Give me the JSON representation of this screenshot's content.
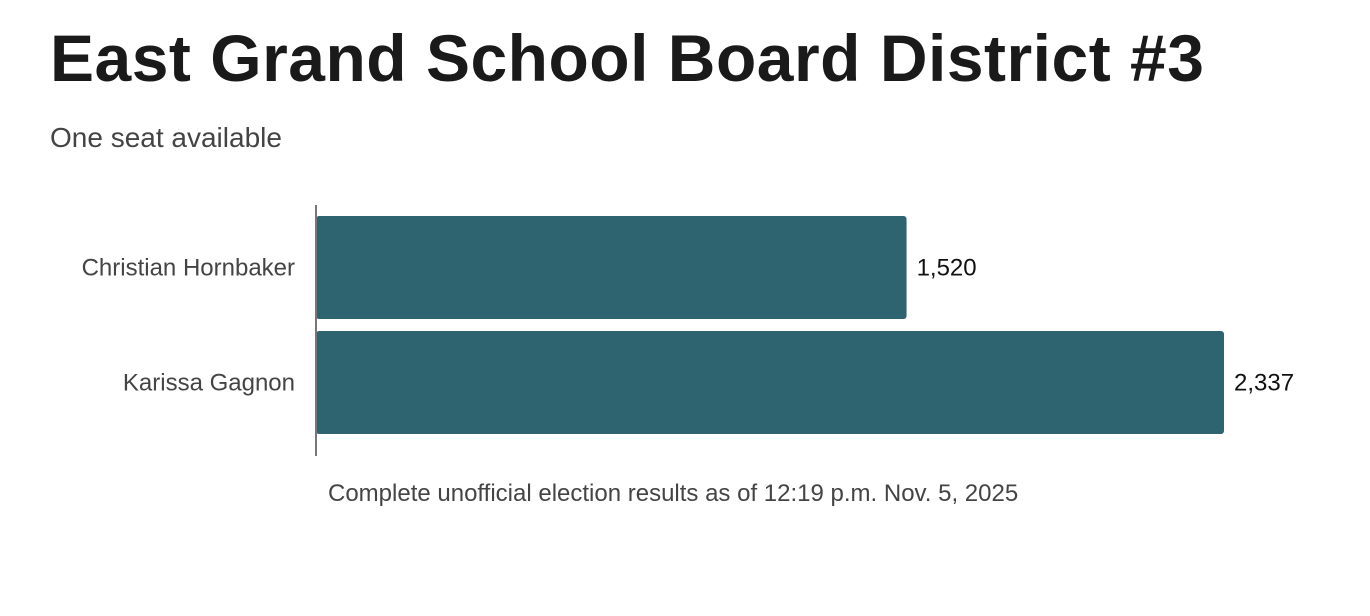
{
  "title": "East Grand School Board District #3",
  "subtitle": "One seat available",
  "note": "Complete unofficial election results as of 12:19 p.m. Nov. 5, 2025",
  "chart_data": {
    "type": "bar",
    "orientation": "horizontal",
    "categories": [
      "Christian Hornbaker",
      "Karissa Gagnon"
    ],
    "values": [
      1520,
      2337
    ],
    "value_labels": [
      "1,520",
      "2,337"
    ],
    "color": "#2e6470",
    "xlim": [
      0,
      2337
    ]
  }
}
